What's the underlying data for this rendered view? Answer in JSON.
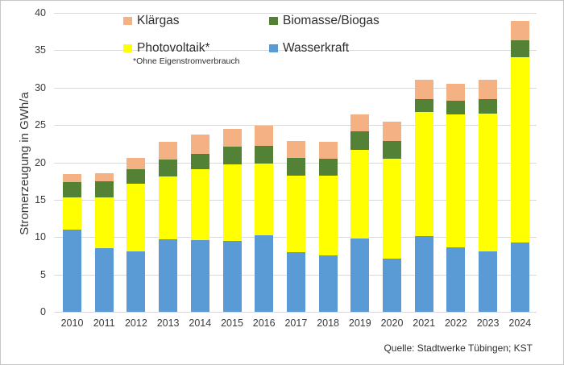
{
  "source_note": "Quelle: Stadtwerke Tübingen; KST",
  "legend": {
    "items": [
      {
        "label": "Klärgas",
        "series_index": 3
      },
      {
        "label": "Biomasse/Biogas",
        "series_index": 2
      },
      {
        "label": "Photovoltaik*",
        "series_index": 1
      },
      {
        "label": "Wasserkraft",
        "series_index": 0
      }
    ],
    "footnote": "*Ohne Eigenstromverbrauch"
  },
  "chart_data": {
    "type": "bar",
    "stacked": true,
    "title": "",
    "xlabel": "",
    "ylabel": "Stromerzeugung in GWh/a",
    "ylim": [
      0,
      40
    ],
    "ytick_step": 5,
    "grid": true,
    "legend_position": "top-inside",
    "categories": [
      "2010",
      "2011",
      "2012",
      "2013",
      "2014",
      "2015",
      "2016",
      "2017",
      "2018",
      "2019",
      "2020",
      "2021",
      "2022",
      "2023",
      "2024"
    ],
    "series": [
      {
        "name": "Wasserkraft",
        "color": "#5B9BD5",
        "values": [
          11.0,
          8.5,
          8.1,
          9.7,
          9.6,
          9.5,
          10.2,
          8.0,
          7.5,
          9.8,
          7.1,
          10.1,
          8.6,
          8.1,
          9.3
        ]
      },
      {
        "name": "Photovoltaik*",
        "color": "#FFFF00",
        "values": [
          4.3,
          6.8,
          9.0,
          8.4,
          9.5,
          10.2,
          9.6,
          10.2,
          10.7,
          11.9,
          13.4,
          16.6,
          17.8,
          18.4,
          24.8
        ]
      },
      {
        "name": "Biomasse/Biogas",
        "color": "#538135",
        "values": [
          2.1,
          2.2,
          2.0,
          2.3,
          2.0,
          2.4,
          2.4,
          2.4,
          2.3,
          2.4,
          2.4,
          1.8,
          1.8,
          2.0,
          2.2
        ]
      },
      {
        "name": "Klärgas",
        "color": "#F4B183",
        "values": [
          1.0,
          1.0,
          1.5,
          2.4,
          2.6,
          2.4,
          2.7,
          2.3,
          2.2,
          2.3,
          2.5,
          2.6,
          2.3,
          2.6,
          2.6
        ]
      }
    ],
    "totals": [
      18.4,
      18.5,
      20.6,
      22.8,
      23.7,
      24.5,
      24.9,
      22.9,
      22.7,
      26.4,
      25.4,
      31.1,
      30.5,
      31.1,
      38.9
    ]
  }
}
